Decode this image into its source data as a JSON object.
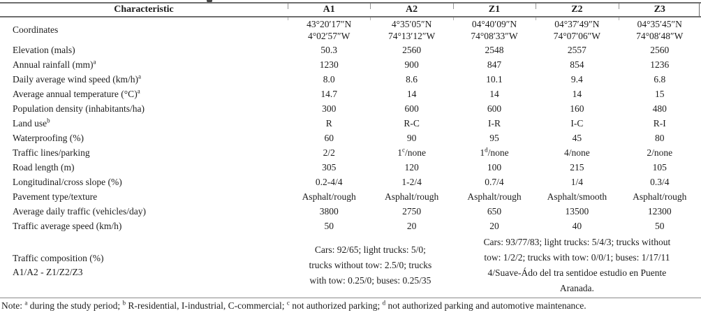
{
  "colors": {
    "background": "#ffffff",
    "text": "#1c1c1c",
    "rule": "#6e6e6e"
  },
  "header": {
    "cols": [
      "Characteristic",
      "A1",
      "A2",
      "Z1",
      "Z2",
      "Z3"
    ]
  },
  "coordinates": {
    "label": "Coordinates",
    "cells": [
      {
        "l1": "43°20′17″N",
        "l2": "4°02′57″W"
      },
      {
        "l1": "4°35′05″N",
        "l2": "74°13′12″W"
      },
      {
        "l1": "04°40′09″N",
        "l2": "74°08′33″W"
      },
      {
        "l1": "04°37′49″N",
        "l2": "74°07′06″W"
      },
      {
        "l1": "04°35′45″N",
        "l2": "74°08′48″W"
      }
    ]
  },
  "rows": [
    {
      "label": "Elevation (mals)",
      "sup": "",
      "values": [
        "50.3",
        "2560",
        "2548",
        "2557",
        "2560"
      ]
    },
    {
      "label": "Annual rainfall (mm)",
      "sup": "a",
      "values": [
        "1230",
        "900",
        "847",
        "854",
        "1236"
      ]
    },
    {
      "label": "Daily average wind speed (km/h)",
      "sup": "a",
      "values": [
        "8.0",
        "8.6",
        "10.1",
        "9.4",
        "6.8"
      ]
    },
    {
      "label": "Average annual temperature (°C)",
      "sup": "a",
      "values": [
        "14.7",
        "14",
        "14",
        "14",
        "15"
      ]
    },
    {
      "label": "Population density (inhabitants/ha)",
      "sup": "",
      "values": [
        "300",
        "600",
        "600",
        "160",
        "480"
      ]
    },
    {
      "label": "Land use",
      "sup": "b",
      "values": [
        "R",
        "R-C",
        "I-R",
        "I-C",
        "R-I"
      ]
    },
    {
      "label": "Waterproofing (%)",
      "sup": "",
      "values": [
        "60",
        "90",
        "95",
        "45",
        "80"
      ]
    },
    {
      "label": "Road length (m)",
      "sup": "",
      "values": [
        "305",
        "120",
        "100",
        "215",
        "105"
      ]
    },
    {
      "label": "Longitudinal/cross slope (%)",
      "sup": "",
      "values": [
        "0.2-4/4",
        "1-2/4",
        "0.7/4",
        "1/4",
        "0.3/4"
      ]
    },
    {
      "label": "Pavement type/texture",
      "sup": "",
      "values": [
        "Asphalt/rough",
        "Asphalt/rough",
        "Asphalt/rough",
        "Asphalt/smooth",
        "Asphalt/rough"
      ]
    },
    {
      "label": "Average daily traffic (vehicles/day)",
      "sup": "",
      "values": [
        "3800",
        "2750",
        "650",
        "13500",
        "12300"
      ]
    },
    {
      "label": "Traffic average speed (km/h)",
      "sup": "",
      "values": [
        "50",
        "20",
        "20",
        "40",
        "50"
      ]
    }
  ],
  "traffic_lines": {
    "label": "Traffic lines/parking",
    "cells": [
      {
        "pre": "2/2",
        "sup": "",
        "post": ""
      },
      {
        "pre": "1",
        "sup": "c",
        "post": "/none"
      },
      {
        "pre": "1",
        "sup": "d",
        "post": "/none"
      },
      {
        "pre": "4/none",
        "sup": "",
        "post": ""
      },
      {
        "pre": "2/none",
        "sup": "",
        "post": ""
      }
    ]
  },
  "traffic_composition": {
    "label_line1": "Traffic composition (%)",
    "label_line2": "A1/A2 - Z1/Z2/Z3",
    "a1_a2_lines": [
      "Cars: 92/65; light trucks: 5/0;",
      "trucks without tow: 2.5/0; trucks",
      "with tow: 0.25/0; buses: 0.25/35"
    ],
    "z1_z2_z3_lines": [
      "Cars: 93/77/83; light trucks: 5/4/3; trucks without",
      "tow: 1/2/2; trucks with tow: 0/0/1; buses: 1/17/11",
      "4/Suave-Ádo del tra sentidoe estudio en Puente",
      "Aranada."
    ]
  },
  "note": {
    "parts": [
      {
        "text": "Note: "
      },
      {
        "sup": "a"
      },
      {
        "text": " during the study period; "
      },
      {
        "sup": "b"
      },
      {
        "text": " R-residential, I-industrial, C-commercial; "
      },
      {
        "sup": "c"
      },
      {
        "text": " not authorized parking; "
      },
      {
        "sup": "d"
      },
      {
        "text": " not authorized parking and automotive maintenance."
      }
    ]
  }
}
